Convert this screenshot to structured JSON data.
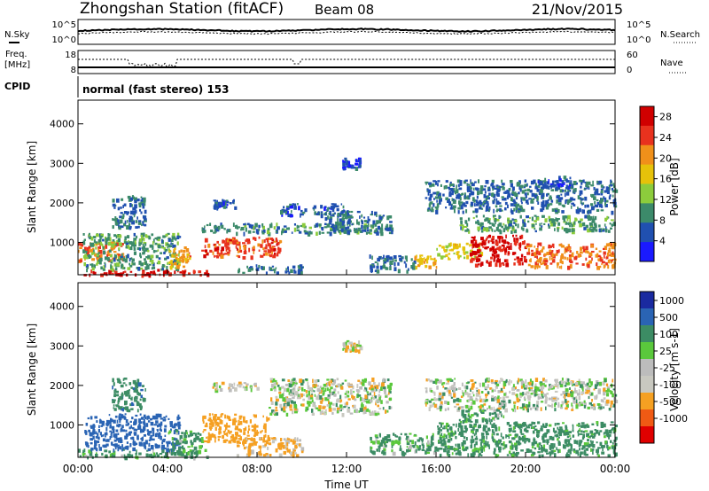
{
  "header": {
    "station": "Zhongshan Station (fitACF)",
    "beam": "Beam 08",
    "date": "21/Nov/2015"
  },
  "top_panel": {
    "left_label": "N.Sky",
    "right_label": "N.Search",
    "left_ticks": [
      "10^5",
      "10^0"
    ],
    "right_ticks": [
      "10^5",
      "10^0"
    ]
  },
  "freq_panel": {
    "left_label_1": "Freq.",
    "left_label_2": "[MHz]",
    "right_label": "Nave",
    "left_ticks": [
      "18",
      "8"
    ],
    "right_ticks": [
      "60",
      "0"
    ]
  },
  "cpid": {
    "label": "CPID",
    "text": "normal (fast stereo) 153"
  },
  "colors": {
    "power_scale": [
      "#1a1aff",
      "#2050b0",
      "#3c8a6a",
      "#8ccc3c",
      "#e6c20a",
      "#f0901a",
      "#e8321e",
      "#d00000"
    ],
    "velocity_scale": [
      "#e00000",
      "#f05a14",
      "#f5a022",
      "#c8c8c0",
      "#bcbcbc",
      "#5ac83c",
      "#3c8c64",
      "#2a64b4",
      "#1a2aa0"
    ]
  },
  "chart_data": [
    {
      "type": "heatmap",
      "title": "Power",
      "xlabel": "Time UT",
      "ylabel": "Slant Range [km]",
      "xlim": [
        "00:00",
        "24:00"
      ],
      "ylim": [
        180,
        4600
      ],
      "x_ticks": [
        "00:00",
        "04:00",
        "08:00",
        "12:00",
        "16:00",
        "20:00",
        "00:00"
      ],
      "y_ticks": [
        1000,
        2000,
        3000,
        4000
      ],
      "colorbar_label": "Power [dB]",
      "colorbar_ticks": [
        4,
        8,
        12,
        16,
        20,
        24,
        28
      ],
      "colorbar_range": [
        0,
        30
      ],
      "regions": [
        {
          "t": [
            0.0,
            5.8
          ],
          "r": [
            200,
            330
          ],
          "power": 27
        },
        {
          "t": [
            0.0,
            2.0
          ],
          "r": [
            550,
            1050
          ],
          "power": 22
        },
        {
          "t": [
            0.2,
            4.5
          ],
          "r": [
            330,
            1250
          ],
          "power": 10
        },
        {
          "t": [
            1.5,
            3.0
          ],
          "r": [
            1400,
            2200
          ],
          "power": 7
        },
        {
          "t": [
            4.0,
            5.0
          ],
          "r": [
            400,
            900
          ],
          "power": 20
        },
        {
          "t": [
            5.5,
            9.0
          ],
          "r": [
            650,
            1150
          ],
          "power": 24
        },
        {
          "t": [
            6.0,
            7.0
          ],
          "r": [
            1900,
            2100
          ],
          "power": 6
        },
        {
          "t": [
            5.5,
            14.0
          ],
          "r": [
            1250,
            1500
          ],
          "power": 9
        },
        {
          "t": [
            7.0,
            10.0
          ],
          "r": [
            250,
            450
          ],
          "power": 8
        },
        {
          "t": [
            9.0,
            12.0
          ],
          "r": [
            1700,
            2000
          ],
          "power": 6
        },
        {
          "t": [
            11.0,
            14.0
          ],
          "r": [
            1300,
            1800
          ],
          "power": 8
        },
        {
          "t": [
            11.8,
            12.6
          ],
          "r": [
            2900,
            3150
          ],
          "power": 5
        },
        {
          "t": [
            13.0,
            15.0
          ],
          "r": [
            300,
            700
          ],
          "power": 7
        },
        {
          "t": [
            15.0,
            16.0
          ],
          "r": [
            400,
            700
          ],
          "power": 18
        },
        {
          "t": [
            15.5,
            24.0
          ],
          "r": [
            1800,
            2600
          ],
          "power": 7
        },
        {
          "t": [
            16.0,
            18.0
          ],
          "r": [
            600,
            1000
          ],
          "power": 16
        },
        {
          "t": [
            17.5,
            20.0
          ],
          "r": [
            450,
            1200
          ],
          "power": 27
        },
        {
          "t": [
            17.0,
            24.0
          ],
          "r": [
            1300,
            1700
          ],
          "power": 10
        },
        {
          "t": [
            20.0,
            24.0
          ],
          "r": [
            400,
            1000
          ],
          "power": 22
        },
        {
          "t": [
            20.5,
            22.0
          ],
          "r": [
            2400,
            2700
          ],
          "power": 5
        }
      ]
    },
    {
      "type": "heatmap",
      "title": "Velocity",
      "xlabel": "Time UT",
      "ylabel": "Slant Range [km]",
      "xlim": [
        "00:00",
        "24:00"
      ],
      "ylim": [
        180,
        4600
      ],
      "x_ticks": [
        "00:00",
        "04:00",
        "08:00",
        "12:00",
        "16:00",
        "20:00",
        "00:00"
      ],
      "y_ticks": [
        1000,
        2000,
        3000,
        4000
      ],
      "colorbar_label": "Velocity [m s-1]",
      "colorbar_ticks": [
        1000,
        500,
        100,
        25,
        -25,
        -100,
        -500,
        -1000
      ],
      "regions": [
        {
          "t": [
            0.0,
            5.8
          ],
          "r": [
            200,
            400
          ],
          "velocity": 150
        },
        {
          "t": [
            0.2,
            4.5
          ],
          "r": [
            400,
            1300
          ],
          "velocity": 700
        },
        {
          "t": [
            1.5,
            3.0
          ],
          "r": [
            1400,
            2200
          ],
          "velocity": 400
        },
        {
          "t": [
            4.0,
            5.5
          ],
          "r": [
            300,
            900
          ],
          "velocity": 150
        },
        {
          "t": [
            5.5,
            8.5
          ],
          "r": [
            600,
            1300
          ],
          "velocity": -250
        },
        {
          "t": [
            7.0,
            10.0
          ],
          "r": [
            250,
            700
          ],
          "velocity": -150
        },
        {
          "t": [
            6.0,
            8.0
          ],
          "r": [
            1900,
            2100
          ],
          "velocity": -40
        },
        {
          "t": [
            8.5,
            14.0
          ],
          "r": [
            1300,
            2200
          ],
          "velocity": 0
        },
        {
          "t": [
            11.8,
            12.6
          ],
          "r": [
            2900,
            3150
          ],
          "velocity": -40
        },
        {
          "t": [
            13.0,
            16.0
          ],
          "r": [
            300,
            800
          ],
          "velocity": 150
        },
        {
          "t": [
            15.5,
            24.0
          ],
          "r": [
            1400,
            2200
          ],
          "velocity": 0
        },
        {
          "t": [
            16.0,
            24.0
          ],
          "r": [
            250,
            1100
          ],
          "velocity": 200
        },
        {
          "t": [
            17.0,
            19.0
          ],
          "r": [
            1100,
            1400
          ],
          "velocity": 150
        }
      ]
    }
  ]
}
